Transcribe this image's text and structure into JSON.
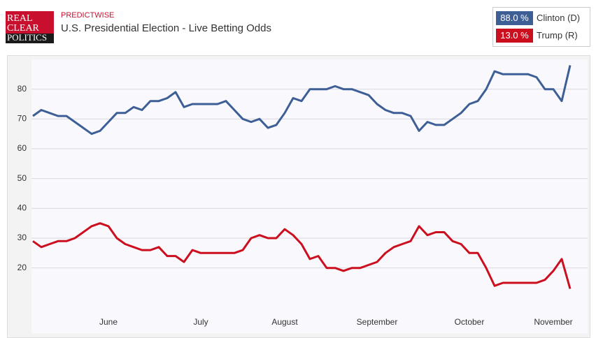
{
  "header": {
    "logo": [
      "REAL",
      "CLEAR",
      "POLITICS"
    ],
    "source": "PREDICTWISE"
  },
  "chart_data": {
    "type": "line",
    "title": "U.S. Presidential Election - Live Betting Odds",
    "categories": [
      null,
      null,
      null,
      null,
      null,
      null,
      null,
      null,
      null,
      "June",
      null,
      null,
      null,
      null,
      null,
      null,
      null,
      null,
      null,
      null,
      "July",
      null,
      null,
      null,
      null,
      null,
      null,
      null,
      null,
      null,
      "August",
      null,
      null,
      null,
      null,
      null,
      null,
      null,
      null,
      null,
      null,
      "September",
      null,
      null,
      null,
      null,
      null,
      null,
      null,
      null,
      null,
      null,
      "October",
      null,
      null,
      null,
      null,
      null,
      null,
      null,
      null,
      null,
      "November",
      null,
      null
    ],
    "series": [
      {
        "name": "Clinton (D)",
        "current": "88.0 %",
        "color": "#3d5f96",
        "values": [
          71,
          73,
          72,
          71,
          71,
          69,
          67,
          65,
          66,
          69,
          72,
          72,
          74,
          73,
          76,
          76,
          77,
          79,
          74,
          75,
          75,
          75,
          75,
          76,
          73,
          70,
          69,
          70,
          67,
          68,
          72,
          77,
          76,
          80,
          80,
          80,
          81,
          80,
          80,
          79,
          78,
          75,
          73,
          72,
          72,
          71,
          66,
          69,
          68,
          68,
          70,
          72,
          75,
          76,
          80,
          86,
          85,
          85,
          85,
          85,
          84,
          80,
          80,
          76,
          88
        ]
      },
      {
        "name": "Trump (R)",
        "current": "13.0 %",
        "color": "#cc0f1f",
        "values": [
          29,
          27,
          28,
          29,
          29,
          30,
          32,
          34,
          35,
          34,
          30,
          28,
          27,
          26,
          26,
          27,
          24,
          24,
          22,
          26,
          25,
          25,
          25,
          25,
          25,
          26,
          30,
          31,
          30,
          30,
          33,
          31,
          28,
          23,
          24,
          20,
          20,
          19,
          20,
          20,
          21,
          22,
          25,
          27,
          28,
          29,
          34,
          31,
          32,
          32,
          29,
          28,
          25,
          25,
          20,
          14,
          15,
          15,
          15,
          15,
          15,
          16,
          19,
          23,
          13
        ]
      }
    ],
    "ylim": [
      0,
      90
    ],
    "yticks": [
      20,
      30,
      40,
      50,
      60,
      70,
      80
    ],
    "grid": true
  }
}
